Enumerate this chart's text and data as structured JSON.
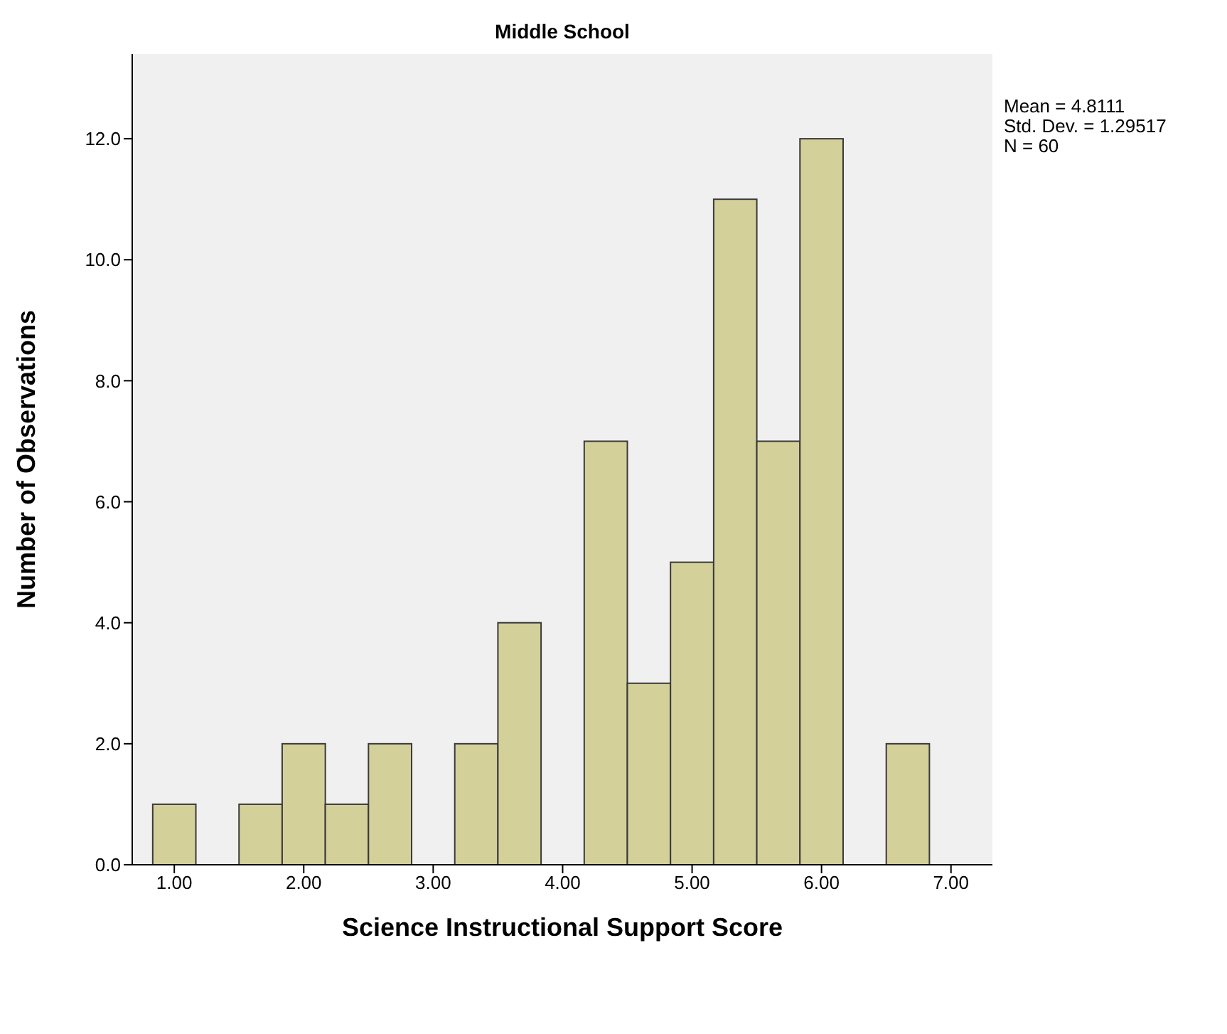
{
  "chart_data": {
    "type": "histogram",
    "title": "Middle School",
    "xlabel": "Science Instructional Support Score",
    "ylabel": "Number of Observations",
    "bins": [
      0.8333,
      1.1667,
      1.5,
      1.8333,
      2.1667,
      2.5,
      2.8333,
      3.1667,
      3.5,
      3.8333,
      4.1667,
      4.5,
      4.8333,
      5.1667,
      5.5,
      5.8333,
      6.1667,
      6.5,
      6.8333
    ],
    "values": [
      1,
      0,
      1,
      2,
      1,
      2,
      0,
      2,
      4,
      0,
      7,
      3,
      5,
      11,
      7,
      12,
      0,
      2
    ],
    "color": "#d4d09a",
    "xlim": [
      0.675,
      7.32
    ],
    "xticks": [
      {
        "value": 1,
        "label": "1.00"
      },
      {
        "value": 2,
        "label": "2.00"
      },
      {
        "value": 3,
        "label": "3.00"
      },
      {
        "value": 4,
        "label": "4.00"
      },
      {
        "value": 5,
        "label": "5.00"
      },
      {
        "value": 6,
        "label": "6.00"
      },
      {
        "value": 7,
        "label": "7.00"
      }
    ],
    "ylim": [
      0,
      13.4
    ],
    "yticks": [
      {
        "value": 0,
        "label": "0.0"
      },
      {
        "value": 2,
        "label": "2.0"
      },
      {
        "value": 4,
        "label": "4.0"
      },
      {
        "value": 6,
        "label": "6.0"
      },
      {
        "value": 8,
        "label": "8.0"
      },
      {
        "value": 10,
        "label": "10.0"
      },
      {
        "value": 12,
        "label": "12.0"
      }
    ],
    "grid": false,
    "annotations": [
      "Mean = 4.8111",
      "Std. Dev. = 1.29517",
      "N = 60"
    ]
  }
}
